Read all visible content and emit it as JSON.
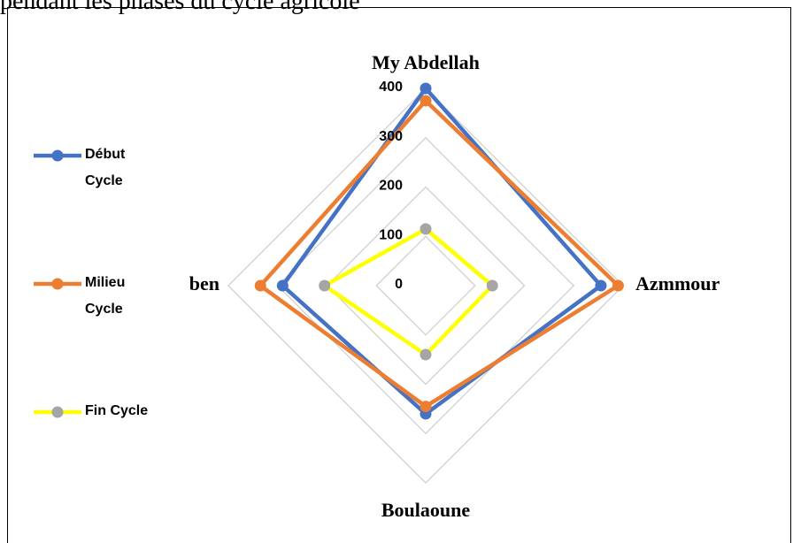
{
  "chart_data": {
    "type": "radar",
    "title": "pendant les phases du cycle agricole",
    "categories": [
      "My Abdellah",
      "Azmmour",
      "Boulaoune",
      "ben"
    ],
    "series": [
      {
        "name": "Début Cycle",
        "color": "#4472c4",
        "marker_color": "#4472c4",
        "values": [
          400,
          355,
          260,
          290
        ]
      },
      {
        "name": "Milieu Cycle",
        "color": "#ed7d31",
        "marker_color": "#ed7d31",
        "values": [
          375,
          390,
          245,
          335
        ]
      },
      {
        "name": "Fin Cycle",
        "color": "#ffff00",
        "marker_color": "#a5a5a5",
        "values": [
          115,
          135,
          140,
          205
        ]
      }
    ],
    "ylim": [
      0,
      400
    ],
    "yticks": [
      0,
      100,
      200,
      300,
      400
    ],
    "grid": true,
    "legend": "left"
  }
}
